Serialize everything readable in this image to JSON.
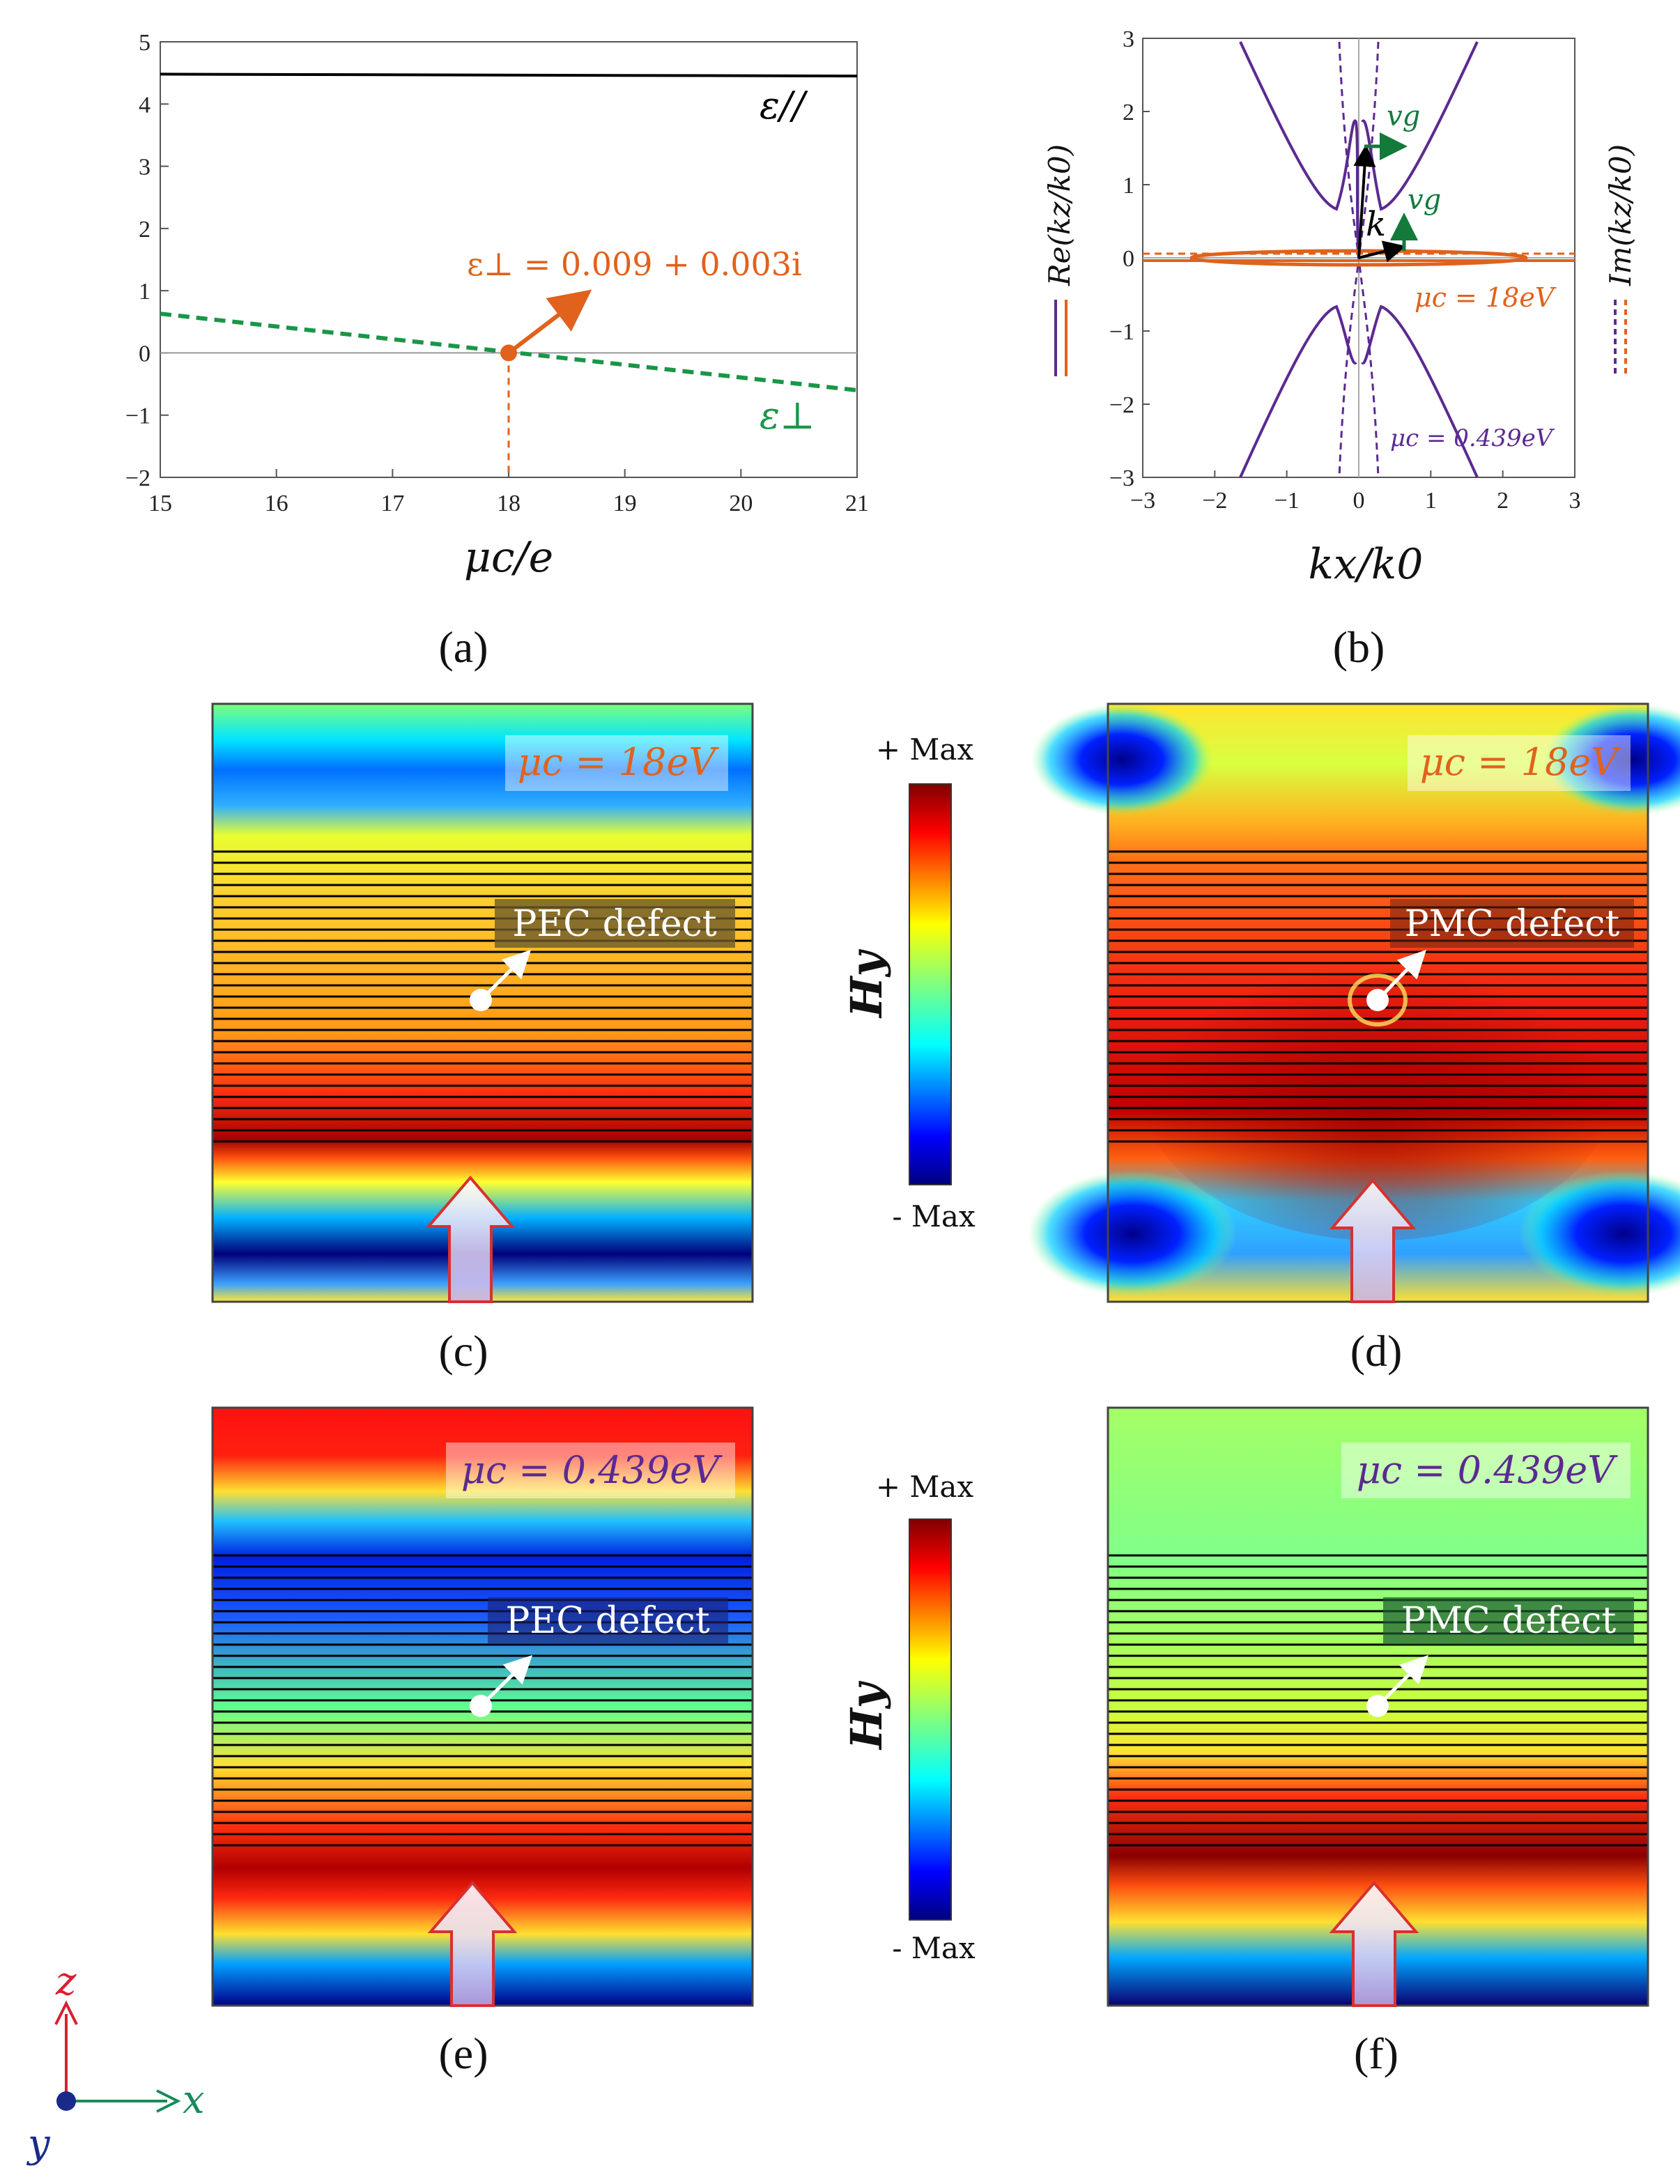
{
  "panels": {
    "a": {
      "label": "(a)",
      "xlabel": "μc/e",
      "eps_par_label": "ε//",
      "eps_perp_label": "ε⊥",
      "annotation": "ε⊥ = 0.009 + 0.003i",
      "colors": {
        "eps_par": "#000000",
        "eps_perp": "#1a9648",
        "marker": "#e0621c"
      }
    },
    "b": {
      "label": "(b)",
      "xlabel": "kx/k0",
      "re_label": "Re(kz/k0)",
      "im_label": "Im(kz/k0)",
      "mu18_label": "μc = 18eV",
      "mu439_label": "μc = 0.439eV",
      "k_label": "k",
      "vg_label": "vg",
      "colors": {
        "purple": "#5b2a91",
        "orange": "#e0621c",
        "green": "#137a3c"
      }
    },
    "c": {
      "label": "(c)",
      "mu_text": "μc = 18eV",
      "defect_text": "PEC defect"
    },
    "d": {
      "label": "(d)",
      "mu_text": "μc = 18eV",
      "defect_text": "PMC defect"
    },
    "e": {
      "label": "(e)",
      "mu_text": "μc = 0.439eV",
      "defect_text": "PEC defect"
    },
    "f": {
      "label": "(f)",
      "mu_text": "μc = 0.439eV",
      "defect_text": "PMC defect"
    }
  },
  "colorbars": [
    {
      "top_label": "+ Max",
      "bottom_label": "- Max",
      "title": "Hy"
    },
    {
      "top_label": "+ Max",
      "bottom_label": "- Max",
      "title": "Hy"
    }
  ],
  "axes_glyph": {
    "z": "z",
    "x": "x",
    "y": "y"
  },
  "chart_data": [
    {
      "type": "line",
      "panel": "a",
      "xlabel": "μc/e",
      "ylabel": "",
      "xlim": [
        15,
        21
      ],
      "ylim": [
        -2,
        5
      ],
      "xticks": [
        15,
        16,
        17,
        18,
        19,
        20,
        21
      ],
      "yticks": [
        -2,
        -1,
        0,
        1,
        2,
        3,
        4,
        5
      ],
      "series": [
        {
          "name": "ε//",
          "style": "solid",
          "color": "#000000",
          "x": [
            15,
            21
          ],
          "y": [
            4.48,
            4.45
          ]
        },
        {
          "name": "ε⊥",
          "style": "dashed",
          "color": "#1a9648",
          "x": [
            15,
            21
          ],
          "y": [
            0.63,
            -0.6
          ]
        }
      ],
      "annotations": [
        {
          "x": 18,
          "y": 0,
          "text": "ε⊥ = 0.009 + 0.003i"
        }
      ]
    },
    {
      "type": "line",
      "panel": "b",
      "xlabel": "kx/k0",
      "ylabel_left": "Re(kz/k0)",
      "ylabel_right": "Im(kz/k0)",
      "xlim": [
        -3,
        3
      ],
      "ylim": [
        -3,
        3
      ],
      "xticks": [
        -3,
        -2,
        -1,
        0,
        1,
        2,
        3
      ],
      "yticks": [
        -3,
        -2,
        -1,
        0,
        1,
        2,
        3
      ],
      "series": [
        {
          "name": "μc = 0.439eV Re",
          "style": "solid",
          "color": "#5b2a91"
        },
        {
          "name": "μc = 0.439eV Im",
          "style": "dashed",
          "color": "#5b2a91"
        },
        {
          "name": "μc = 18eV Re",
          "style": "solid",
          "color": "#e0621c"
        },
        {
          "name": "μc = 18eV Im",
          "style": "dashed",
          "color": "#e0621c"
        }
      ]
    }
  ]
}
